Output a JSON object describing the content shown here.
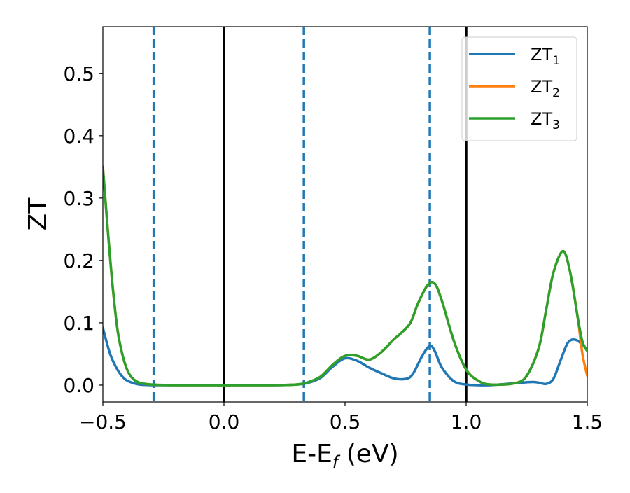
{
  "chart_data": {
    "type": "line",
    "title": "",
    "xlabel": "E-E",
    "xlabel_sub": "f",
    "xlabel_unit": " (eV)",
    "ylabel": "ZT",
    "xlim": [
      -0.5,
      1.5
    ],
    "ylim": [
      -0.027,
      0.575
    ],
    "xticks": [
      -0.5,
      0.0,
      0.5,
      1.0,
      1.5
    ],
    "xtick_labels": [
      "−0.5",
      "0.0",
      "0.5",
      "1.0",
      "1.5"
    ],
    "yticks": [
      0.0,
      0.1,
      0.2,
      0.3,
      0.4,
      0.5
    ],
    "ytick_labels": [
      "0.0",
      "0.1",
      "0.2",
      "0.3",
      "0.4",
      "0.5"
    ],
    "grid": false,
    "legend_position": "top-right",
    "vlines_solid": [
      0.0,
      1.0
    ],
    "vlines_dashed": [
      -0.29,
      0.33,
      0.85
    ],
    "series": [
      {
        "name": "ZT",
        "name_sub": "1",
        "color": "#1f77b4",
        "x": [
          -0.5,
          -0.47,
          -0.44,
          -0.41,
          -0.38,
          -0.35,
          -0.3,
          -0.2,
          0.0,
          0.2,
          0.3,
          0.35,
          0.4,
          0.45,
          0.5,
          0.55,
          0.6,
          0.65,
          0.7,
          0.75,
          0.78,
          0.82,
          0.85,
          0.87,
          0.9,
          0.95,
          1.0,
          1.05,
          1.1,
          1.2,
          1.27,
          1.3,
          1.33,
          1.36,
          1.39,
          1.42,
          1.45,
          1.48,
          1.5
        ],
        "y": [
          0.092,
          0.05,
          0.025,
          0.01,
          0.004,
          0.001,
          0.0,
          0.0,
          0.0,
          0.0,
          0.001,
          0.004,
          0.012,
          0.03,
          0.043,
          0.039,
          0.028,
          0.019,
          0.011,
          0.01,
          0.018,
          0.048,
          0.063,
          0.055,
          0.028,
          0.006,
          0.001,
          0.0,
          0.0,
          0.003,
          0.005,
          0.004,
          0.002,
          0.01,
          0.04,
          0.068,
          0.073,
          0.065,
          0.055
        ]
      },
      {
        "name": "ZT",
        "name_sub": "2",
        "color": "#ff7f0e",
        "x": [
          -0.5,
          -0.48,
          -0.46,
          -0.44,
          -0.42,
          -0.4,
          -0.38,
          -0.35,
          -0.3,
          -0.2,
          0.0,
          0.2,
          0.3,
          0.35,
          0.4,
          0.45,
          0.5,
          0.55,
          0.6,
          0.65,
          0.7,
          0.73,
          0.77,
          0.8,
          0.84,
          0.87,
          0.9,
          0.95,
          1.0,
          1.05,
          1.1,
          1.2,
          1.25,
          1.3,
          1.33,
          1.36,
          1.4,
          1.43,
          1.46,
          1.48,
          1.5
        ],
        "y": [
          0.35,
          0.25,
          0.16,
          0.09,
          0.05,
          0.025,
          0.012,
          0.004,
          0.001,
          0.0,
          0.0,
          0.0,
          0.001,
          0.005,
          0.014,
          0.033,
          0.047,
          0.047,
          0.041,
          0.053,
          0.073,
          0.083,
          0.1,
          0.13,
          0.16,
          0.163,
          0.135,
          0.07,
          0.025,
          0.007,
          0.001,
          0.003,
          0.015,
          0.06,
          0.12,
          0.18,
          0.215,
          0.18,
          0.11,
          0.05,
          0.015
        ]
      },
      {
        "name": "ZT",
        "name_sub": "3",
        "color": "#2ca02c",
        "x": [
          -0.5,
          -0.48,
          -0.46,
          -0.44,
          -0.42,
          -0.4,
          -0.38,
          -0.35,
          -0.3,
          -0.2,
          0.0,
          0.2,
          0.3,
          0.35,
          0.4,
          0.45,
          0.5,
          0.55,
          0.6,
          0.65,
          0.7,
          0.73,
          0.77,
          0.8,
          0.84,
          0.87,
          0.9,
          0.95,
          1.0,
          1.05,
          1.1,
          1.2,
          1.25,
          1.3,
          1.33,
          1.36,
          1.4,
          1.43,
          1.46,
          1.48,
          1.5
        ],
        "y": [
          0.35,
          0.25,
          0.16,
          0.09,
          0.05,
          0.025,
          0.012,
          0.004,
          0.001,
          0.0,
          0.0,
          0.0,
          0.001,
          0.005,
          0.014,
          0.033,
          0.047,
          0.047,
          0.041,
          0.053,
          0.073,
          0.083,
          0.1,
          0.13,
          0.16,
          0.163,
          0.135,
          0.07,
          0.025,
          0.007,
          0.001,
          0.003,
          0.015,
          0.06,
          0.12,
          0.18,
          0.215,
          0.18,
          0.11,
          0.07,
          0.055
        ]
      }
    ]
  }
}
